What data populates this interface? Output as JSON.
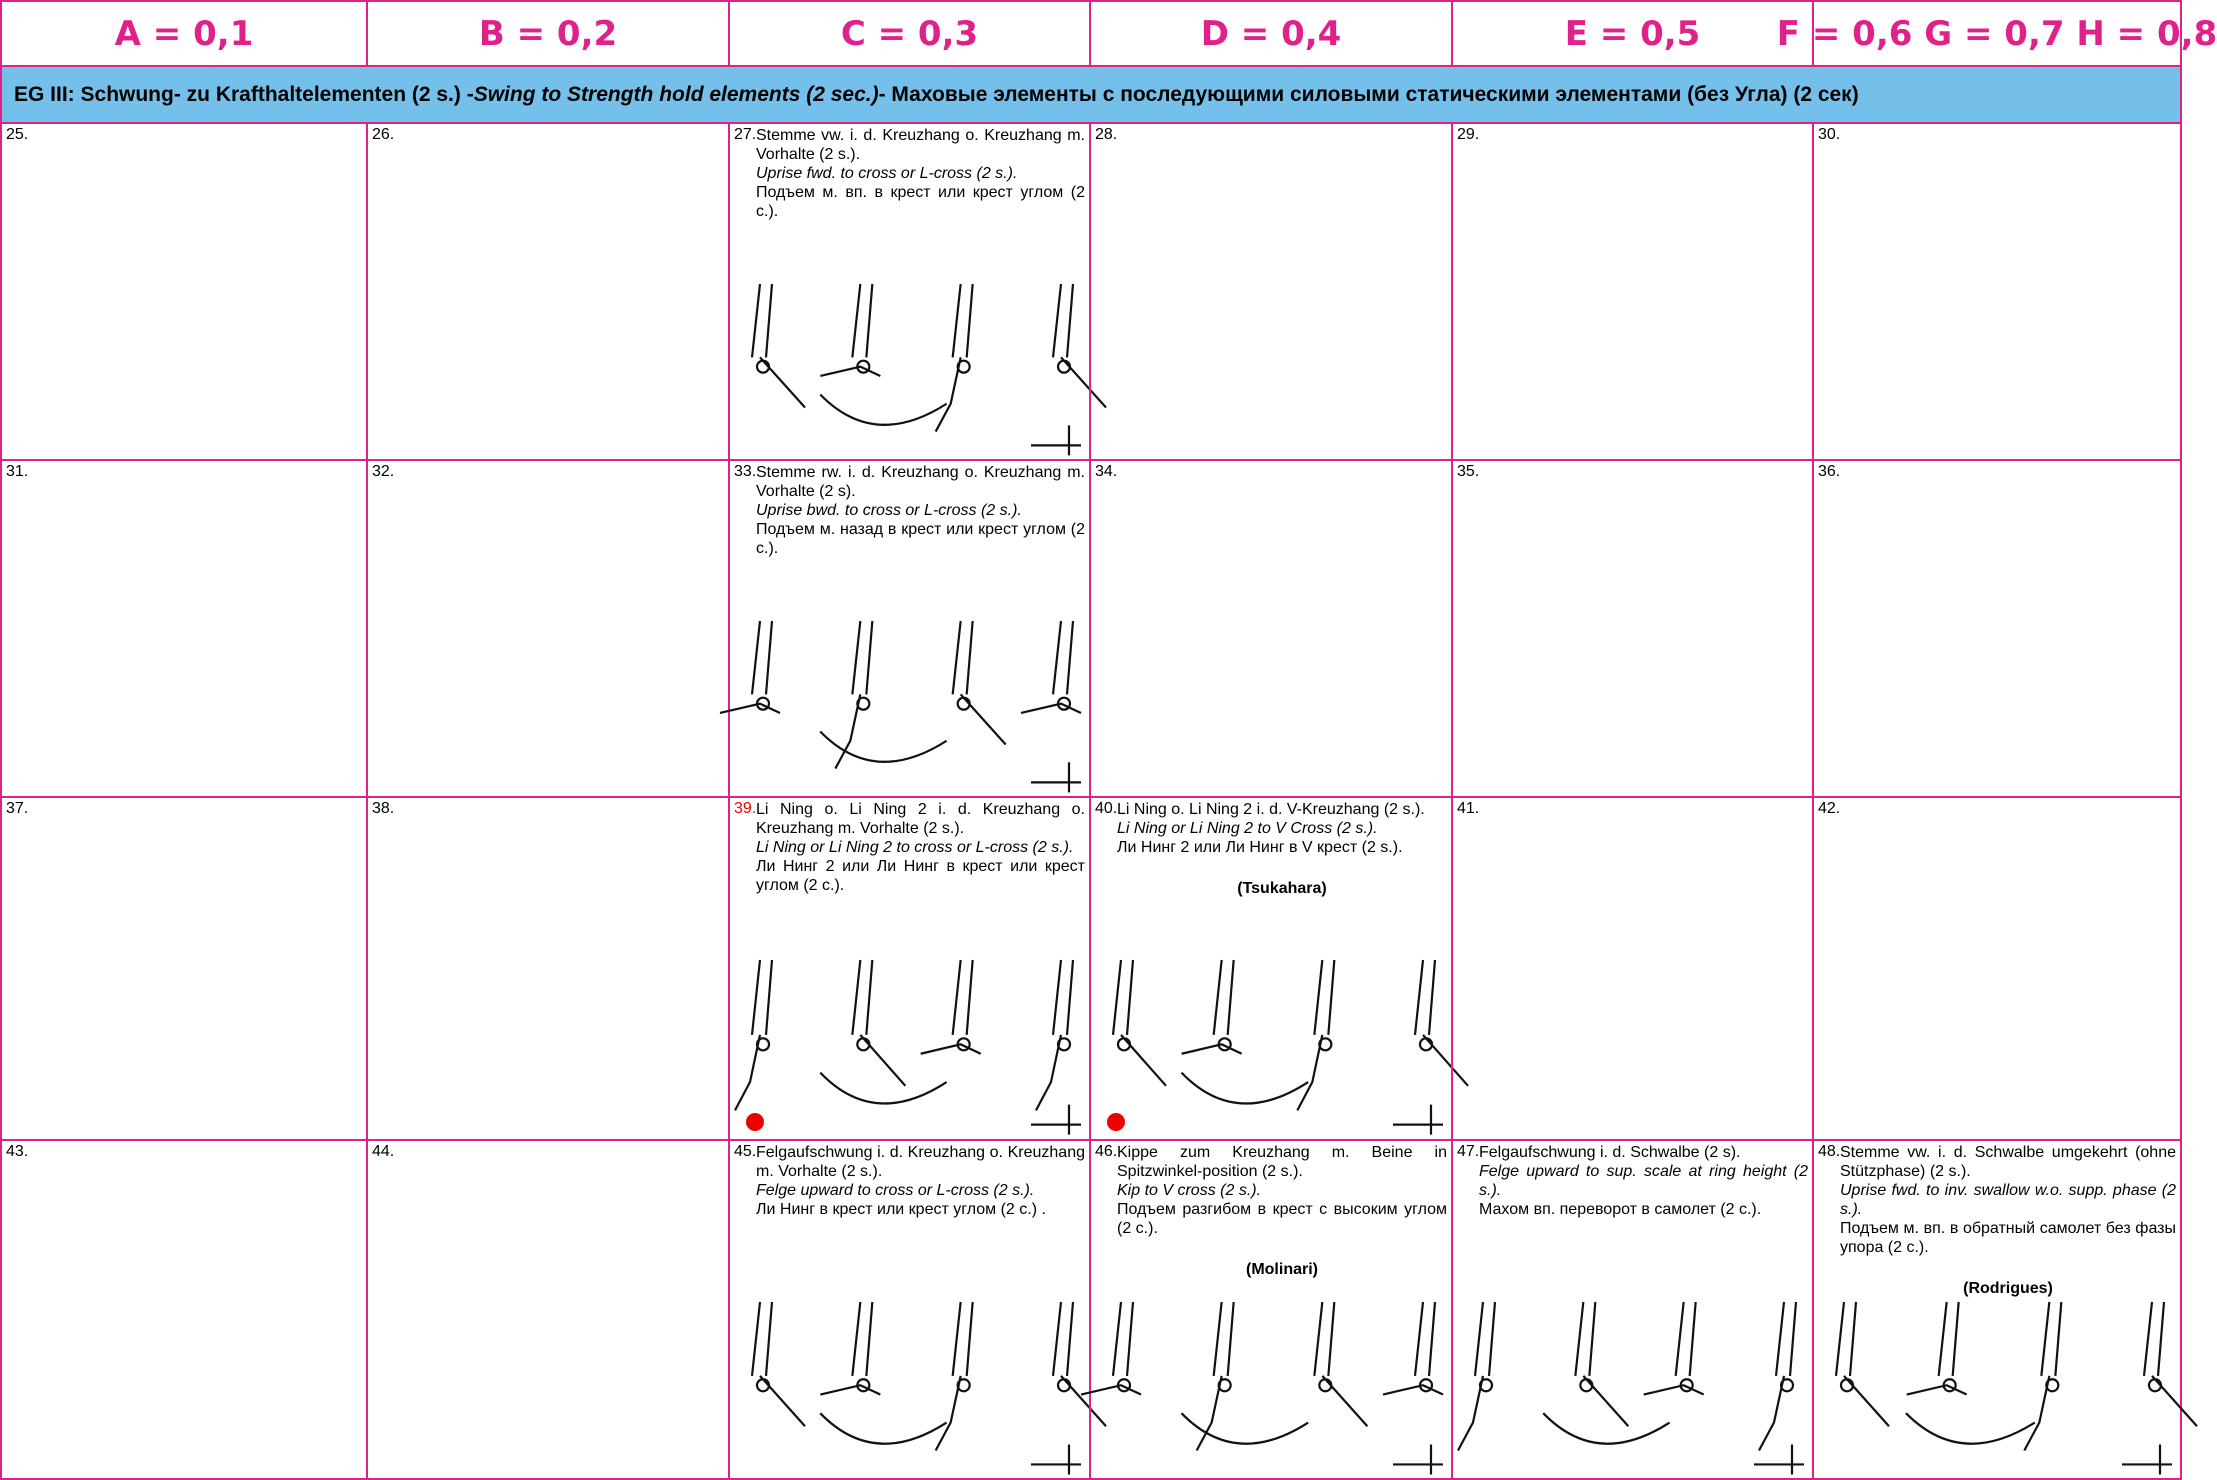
{
  "header": [
    "A = 0,1",
    "B = 0,2",
    "C = 0,3",
    "D = 0,4",
    "E = 0,5",
    "F = 0,6 G = 0,7 H = 0,8"
  ],
  "group": {
    "title": "EG III:  Schwung- zu Krafthaltelementen (2 s.) - ",
    "title_en": "Swing to Strength hold elements (2 sec.)",
    "title_ru": " - Маховые элементы с последующими силовыми статическими элементами (без Угла) (2 сек)"
  },
  "cells": [
    [
      {
        "number": "25."
      },
      {
        "number": "26."
      },
      {
        "number": "27.",
        "de": "Stemme vw. i. d. Kreuzhang o. Kreuzhang m. Vorhalte (2 s.).",
        "en": "Uprise fwd. to cross or L-cross (2 s.).",
        "ru": "Подъем м. вп. в крест или крест углом (2 с.)."
      },
      {
        "number": "28."
      },
      {
        "number": "29."
      },
      {
        "number": "30."
      }
    ],
    [
      {
        "number": "31."
      },
      {
        "number": "32."
      },
      {
        "number": "33.",
        "de": "Stemme rw. i. d. Kreuzhang o. Kreuzhang m. Vorhalte (2 s).",
        "en": "Uprise bwd. to cross or L-cross (2 s.).",
        "ru": "Подъем м. назад в крест или крест углом (2 с.)."
      },
      {
        "number": "34."
      },
      {
        "number": "35."
      },
      {
        "number": "36."
      }
    ],
    [
      {
        "number": "37."
      },
      {
        "number": "38."
      },
      {
        "number": "39.",
        "de": "Li Ning o. Li Ning 2 i. d. Kreuzhang o. Kreuzhang m. Vorhalte (2 s.).",
        "en": "Li Ning or Li Ning 2 to cross or L-cross (2 s.).",
        "ru": "Ли Нинг 2 или Ли Нинг в крест или крест углом (2 с.)."
      },
      {
        "number": "40.",
        "de": "Li Ning o. Li Ning 2 i. d. V-Kreuzhang (2 s.).",
        "en": "Li Ning or Li Ning 2 to V Cross (2 s.).",
        "ru": "Ли Нинг 2 или Ли Нинг в V крест (2 s.).",
        "name": "(Tsukahara)"
      },
      {
        "number": "41."
      },
      {
        "number": "42."
      }
    ],
    [
      {
        "number": "43."
      },
      {
        "number": "44."
      },
      {
        "number": "45.",
        "de": "Felgaufschwung i. d. Kreuzhang o. Kreuzhang m. Vorhalte (2 s.).",
        "en": "Felge upward to cross or L-cross (2 s.).",
        "ru": "Ли Нинг в крест или крест углом (2 с.) ."
      },
      {
        "number": "46.",
        "de": "Kippe zum Kreuzhang m. Beine in Spitzwinkel-position (2 s.).",
        "en": "Kip to V cross (2 s.).",
        "ru": "Подъем разгибом в крест с высоким углом (2 с.).",
        "name": "(Molinari)"
      },
      {
        "number": "47.",
        "de": "Felgaufschwung i. d. Schwalbe (2 s).",
        "en": "Felge upward to sup. scale at ring height (2 s.).",
        "ru": "Махом вп. переворот в самолет (2 с.)."
      },
      {
        "number": "48.",
        "de": "Stemme vw. i. d. Schwalbe umgekehrt (ohne Stützphase) (2 s.).",
        "en": "Uprise fwd. to inv. swallow w.o. supp. phase (2 s.).",
        "ru": "Подъем м. вп. в обратный самолет без фазы упора (2 с.).",
        "name": "(Rodrigues)"
      }
    ]
  ]
}
